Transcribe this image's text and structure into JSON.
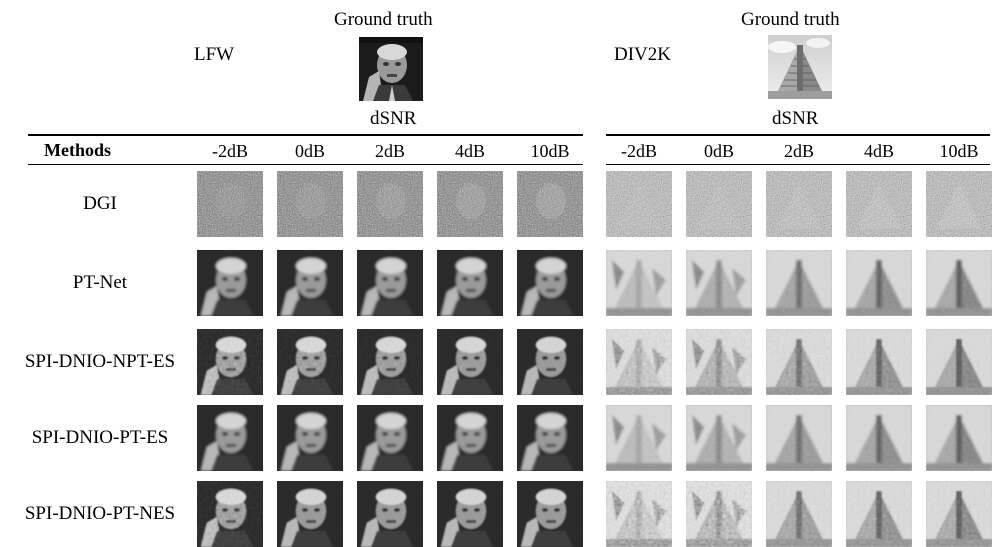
{
  "left": {
    "dataset": "LFW",
    "ground_truth_label": "Ground truth",
    "dsnr_label": "dSNR",
    "face_icon": "face-photo"
  },
  "right": {
    "dataset": "DIV2K",
    "ground_truth_label": "Ground truth",
    "dsnr_label": "dSNR",
    "pyramid_icon": "pyramid-photo"
  },
  "table": {
    "methods_header": "Methods",
    "left_columns": [
      "-2dB",
      "0dB",
      "2dB",
      "4dB",
      "10dB"
    ],
    "right_columns": [
      "-2dB",
      "0dB",
      "2dB",
      "4dB",
      "10dB"
    ],
    "rows": [
      {
        "method": "DGI"
      },
      {
        "method": "PT-Net"
      },
      {
        "method": "SPI-DNIO-NPT-ES"
      },
      {
        "method": "SPI-DNIO-PT-ES"
      },
      {
        "method": "SPI-DNIO-PT-NES"
      }
    ]
  }
}
